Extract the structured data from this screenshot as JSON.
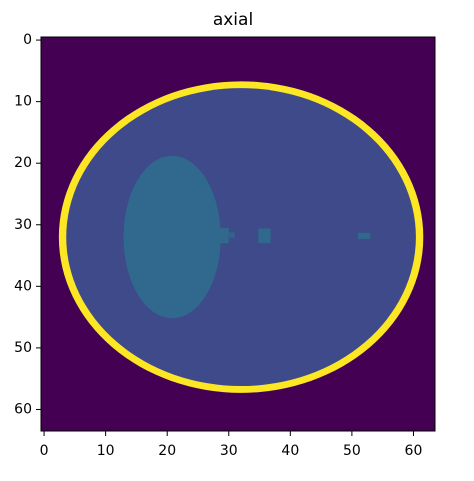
{
  "chart_data": {
    "type": "image",
    "title": "axial",
    "xlim": [
      -0.5,
      63.5
    ],
    "ylim": [
      63.5,
      -0.5
    ],
    "xticks": [
      0,
      10,
      20,
      30,
      40,
      50,
      60
    ],
    "yticks": [
      0,
      10,
      20,
      30,
      40,
      50,
      60
    ]
  }
}
